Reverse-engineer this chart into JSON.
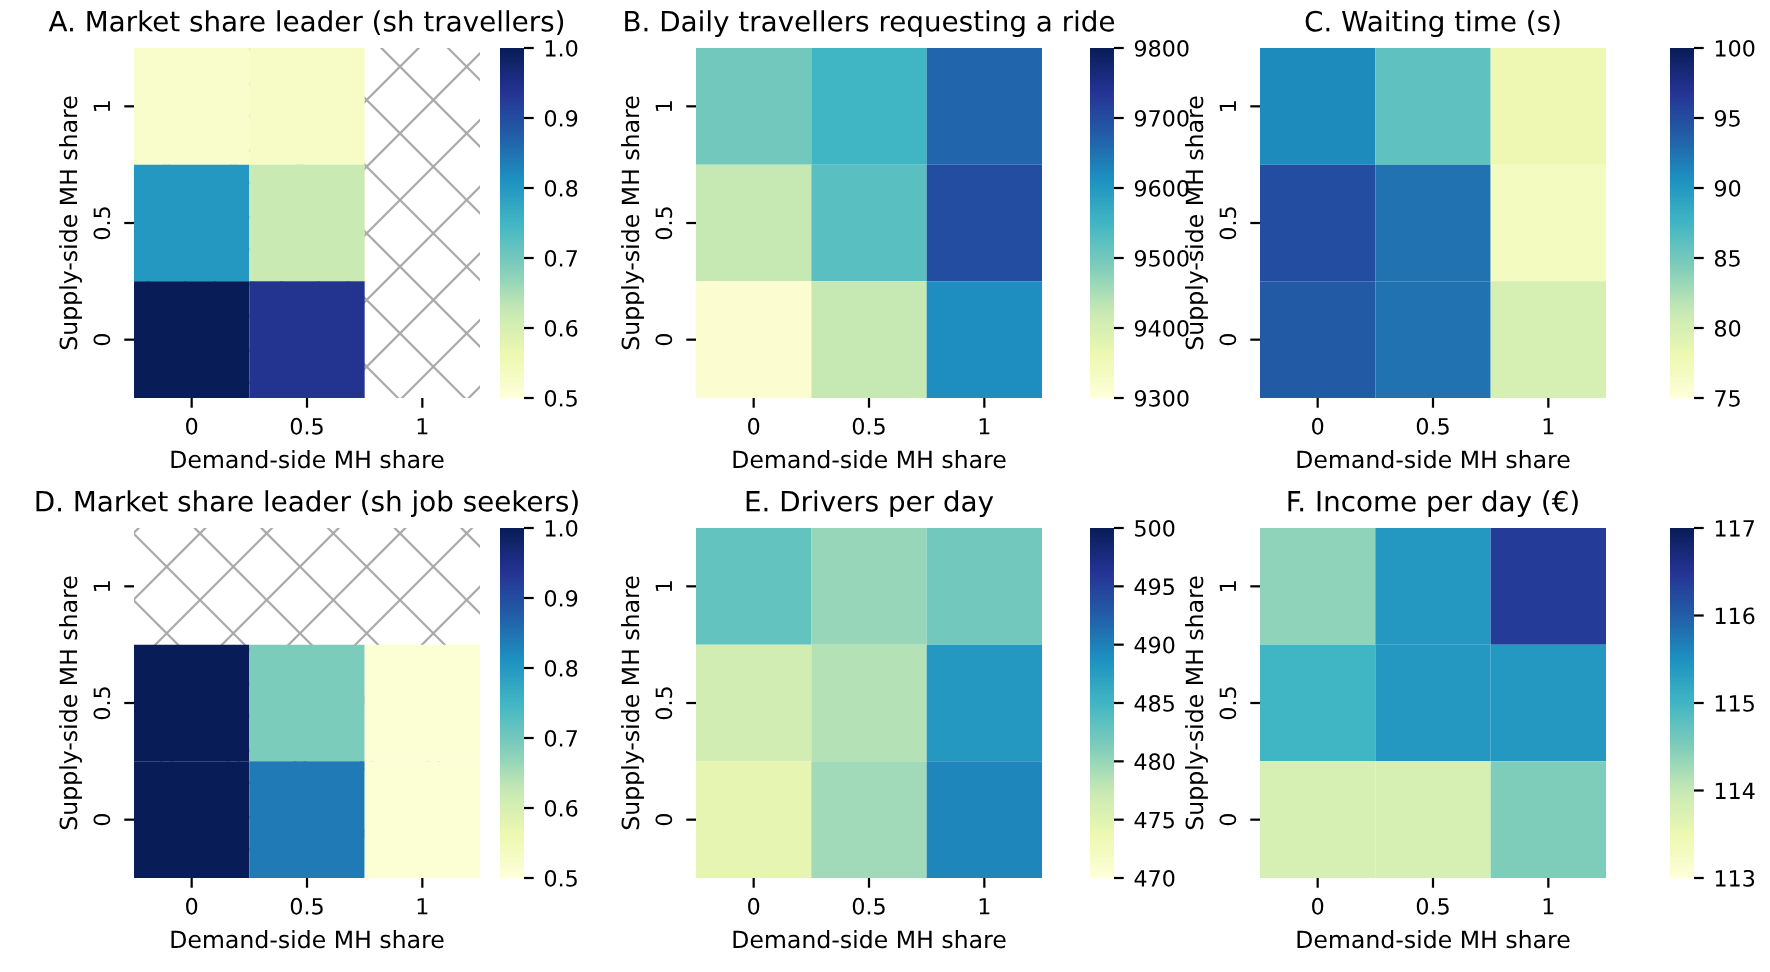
{
  "chart_data": [
    {
      "type": "heatmap",
      "title": "A. Market share leader (sh travellers)",
      "xlabel": "Demand-side MH share",
      "ylabel": "Supply-side MH share",
      "categories": [
        "0",
        "0.5",
        "1"
      ],
      "y_categories": [
        "1",
        "0.5",
        "0"
      ],
      "cells": [
        [
          0.52,
          0.53,
          null
        ],
        [
          0.8,
          0.62,
          null
        ],
        [
          1,
          0.94,
          null
        ]
      ],
      "clim": [
        0.5,
        1
      ],
      "cticks": [
        0.5,
        0.6,
        0.7,
        0.8,
        0.9,
        {
          "value": 1,
          "label": "1.0"
        }
      ]
    },
    {
      "type": "heatmap",
      "title": "B. Daily travellers requesting a ride",
      "xlabel": "Demand-side MH share",
      "ylabel": "Supply-side MH share",
      "categories": [
        "0",
        "0.5",
        "1"
      ],
      "y_categories": [
        "1",
        "0.5",
        "0"
      ],
      "cells": [
        [
          9500,
          9550,
          9665
        ],
        [
          9425,
          9525,
          9700
        ],
        [
          9315,
          9425,
          9615
        ]
      ],
      "clim": [
        9300,
        9800
      ],
      "cticks": [
        9300,
        9400,
        9500,
        9600,
        9700,
        9800
      ]
    },
    {
      "type": "heatmap",
      "title": "C. Waiting time (s)",
      "xlabel": "Demand-side MH share",
      "ylabel": "Supply-side MH share",
      "categories": [
        "0",
        "0.5",
        "1"
      ],
      "y_categories": [
        "1",
        "0.5",
        "0"
      ],
      "cells": [
        [
          91,
          86,
          78
        ],
        [
          95,
          92.5,
          77
        ],
        [
          94,
          92.5,
          80
        ]
      ],
      "clim": [
        75,
        100
      ],
      "cticks": [
        75,
        80,
        85,
        90,
        95,
        100
      ]
    },
    {
      "type": "heatmap",
      "title": "D. Market share leader (sh job seekers)",
      "xlabel": "Demand-side MH share",
      "ylabel": "Supply-side MH share",
      "categories": [
        "0",
        "0.5",
        "1"
      ],
      "y_categories": [
        "1",
        "0.5",
        "0"
      ],
      "cells": [
        [
          null,
          null,
          null
        ],
        [
          1,
          0.69,
          0.51
        ],
        [
          1,
          0.84,
          0.51
        ]
      ],
      "clim": [
        0.5,
        1
      ],
      "cticks": [
        0.5,
        0.6,
        0.7,
        0.8,
        0.9,
        {
          "value": 1,
          "label": "1.0"
        }
      ]
    },
    {
      "type": "heatmap",
      "title": "E. Drivers per day",
      "xlabel": "Demand-side MH share",
      "ylabel": "Supply-side MH share",
      "categories": [
        "0",
        "0.5",
        "1"
      ],
      "y_categories": [
        "1",
        "0.5",
        "0"
      ],
      "cells": [
        [
          483,
          480,
          482
        ],
        [
          476.5,
          478.5,
          488
        ],
        [
          474.5,
          479.5,
          489.5
        ]
      ],
      "clim": [
        470,
        500
      ],
      "cticks": [
        470,
        475,
        480,
        485,
        490,
        495,
        500
      ]
    },
    {
      "type": "heatmap",
      "title": "F. Income per day (€)",
      "xlabel": "Demand-side MH share",
      "ylabel": "Supply-side MH share",
      "categories": [
        "0",
        "0.5",
        "1"
      ],
      "y_categories": [
        "1",
        "0.5",
        "0"
      ],
      "cells": [
        [
          114.4,
          115.4,
          116.4
        ],
        [
          115.0,
          115.4,
          115.4
        ],
        [
          113.8,
          113.8,
          114.5
        ]
      ],
      "clim": [
        113,
        117
      ],
      "cticks": [
        113,
        114,
        115,
        116,
        117
      ]
    }
  ]
}
